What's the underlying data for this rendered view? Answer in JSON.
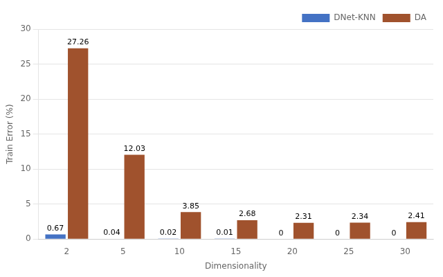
{
  "chart_data": {
    "type": "bar",
    "categories": [
      2,
      5,
      10,
      15,
      20,
      25,
      30
    ],
    "series": [
      {
        "name": "DNet-KNN",
        "color": "#4472C4",
        "values": [
          0.67,
          0.04,
          0.02,
          0.01,
          0,
          0,
          0
        ]
      },
      {
        "name": "DA",
        "color": "#A0522D",
        "values": [
          27.26,
          12.03,
          3.85,
          2.68,
          2.31,
          2.34,
          2.41
        ]
      }
    ],
    "x_label": "Dimensionality",
    "y_label": "Train Error (%)",
    "ylim": [
      0,
      30
    ],
    "yticks": [
      0,
      5,
      10,
      15,
      20,
      25,
      30
    ],
    "grid": true,
    "legend": "upper right",
    "data_labels": true
  }
}
